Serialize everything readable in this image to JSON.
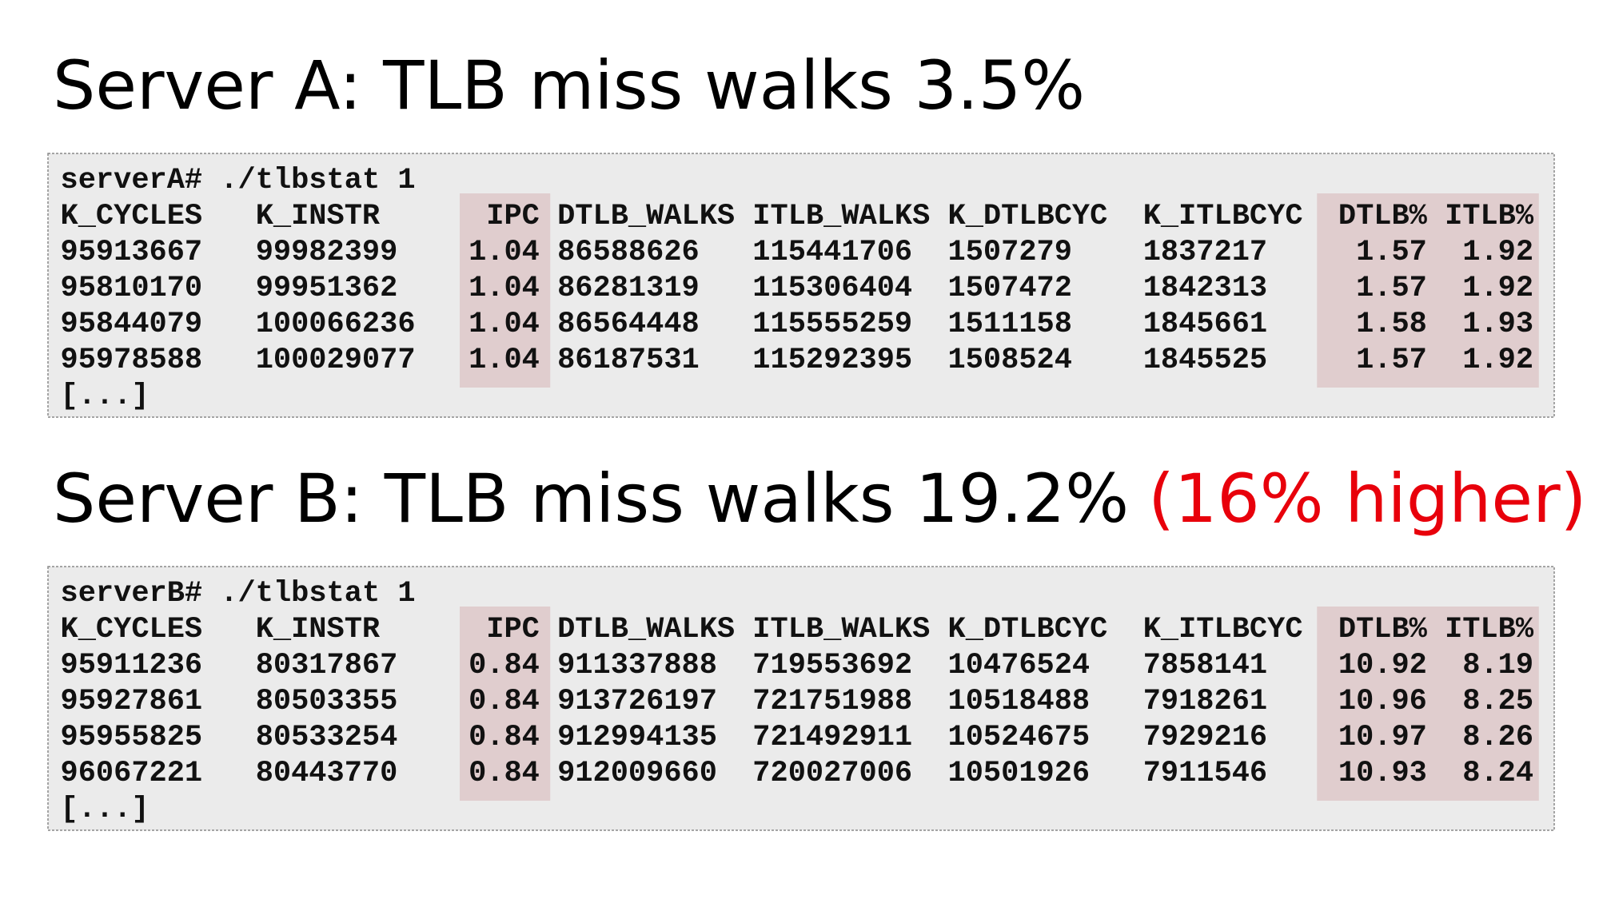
{
  "sections": [
    {
      "title": "Server A: TLB miss walks 3.5%",
      "terminal": {
        "command": "serverA# ./tlbstat 1",
        "header": [
          "K_CYCLES",
          "K_INSTR",
          "IPC",
          "DTLB_WALKS",
          "ITLB_WALKS",
          "K_DTLBCYC",
          "K_ITLBCYC",
          "DTLB%",
          "ITLB%"
        ],
        "rows": [
          [
            "95913667",
            "99982399",
            "1.04",
            "86588626",
            "115441706",
            "1507279",
            "1837217",
            "1.57",
            "1.92"
          ],
          [
            "95810170",
            "99951362",
            "1.04",
            "86281319",
            "115306404",
            "1507472",
            "1842313",
            "1.57",
            "1.92"
          ],
          [
            "95844079",
            "100066236",
            "1.04",
            "86564448",
            "115555259",
            "1511158",
            "1845661",
            "1.58",
            "1.93"
          ],
          [
            "95978588",
            "100029077",
            "1.04",
            "86187531",
            "115292395",
            "1508524",
            "1845525",
            "1.57",
            "1.92"
          ]
        ],
        "ellipsis": "[...]"
      }
    },
    {
      "title": "Server B: TLB miss walks 19.2%",
      "title_note": "(16% higher)",
      "terminal": {
        "command": "serverB# ./tlbstat 1",
        "header": [
          "K_CYCLES",
          "K_INSTR",
          "IPC",
          "DTLB_WALKS",
          "ITLB_WALKS",
          "K_DTLBCYC",
          "K_ITLBCYC",
          "DTLB%",
          "ITLB%"
        ],
        "rows": [
          [
            "95911236",
            "80317867",
            "0.84",
            "911337888",
            "719553692",
            "10476524",
            "7858141",
            "10.92",
            "8.19"
          ],
          [
            "95927861",
            "80503355",
            "0.84",
            "913726197",
            "721751988",
            "10518488",
            "7918261",
            "10.96",
            "8.25"
          ],
          [
            "95955825",
            "80533254",
            "0.84",
            "912994135",
            "721492911",
            "10524675",
            "7929216",
            "10.97",
            "8.26"
          ],
          [
            "96067221",
            "80443770",
            "0.84",
            "912009660",
            "720027006",
            "10501926",
            "7911546",
            "10.93",
            "8.24"
          ]
        ],
        "ellipsis": "[...]"
      }
    }
  ]
}
